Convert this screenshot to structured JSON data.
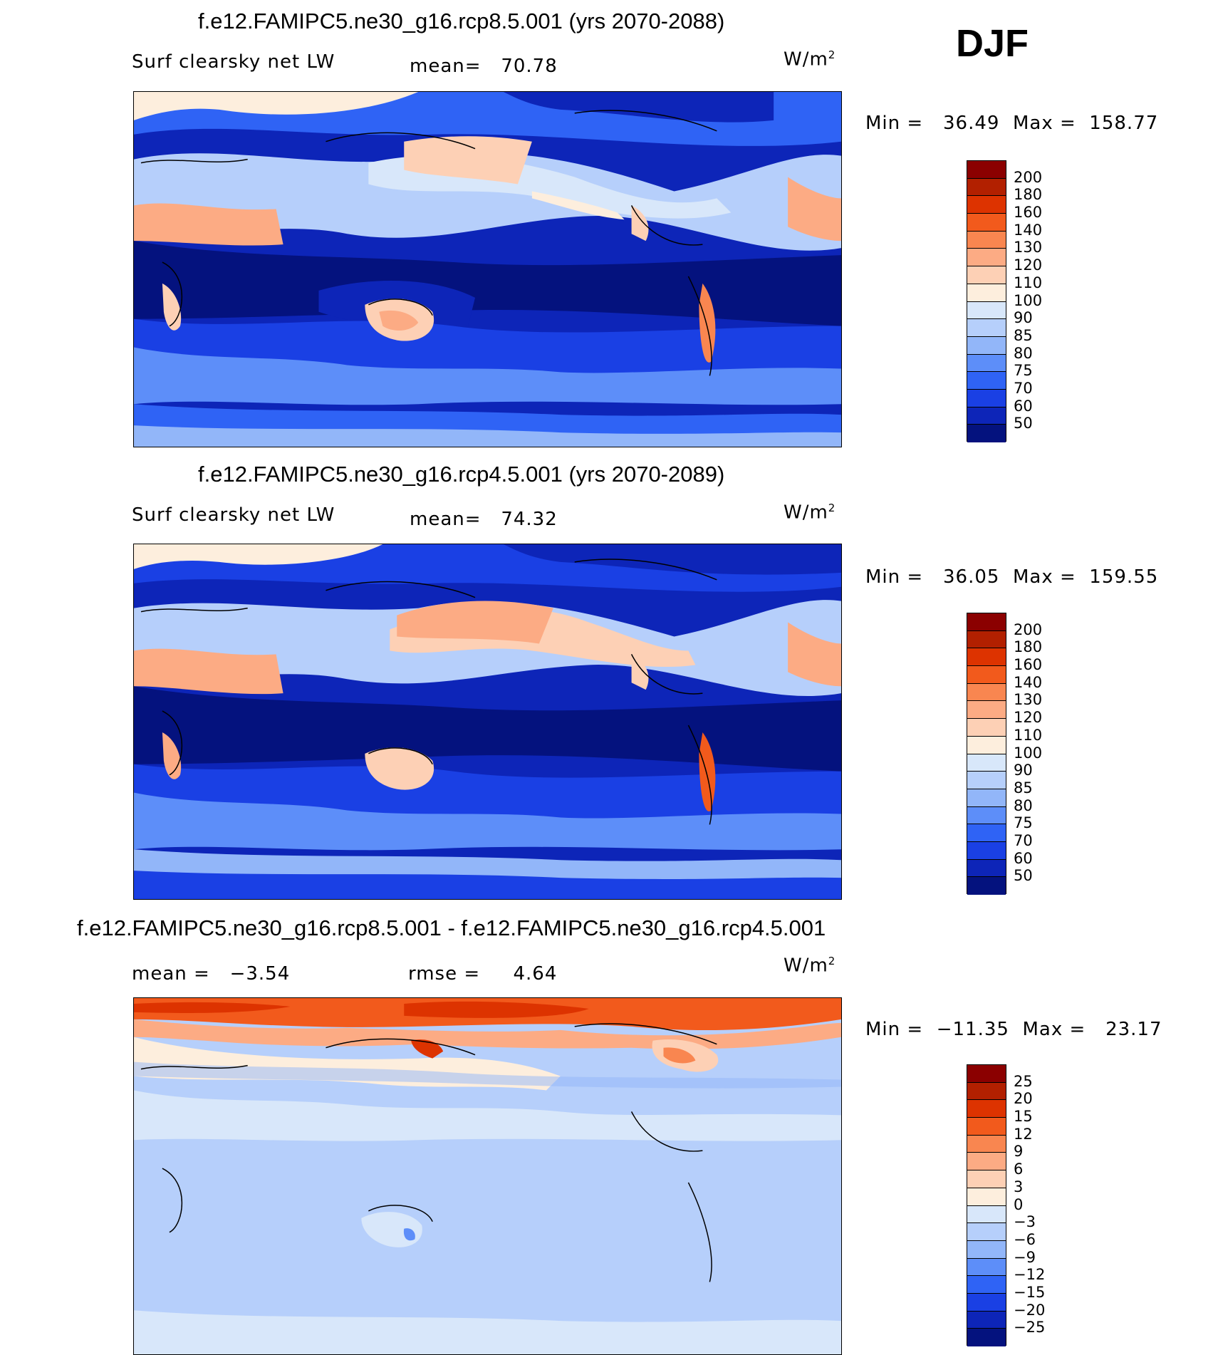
{
  "season": "DJF",
  "chart_data": [
    {
      "type": "heatmap",
      "title": "f.e12.FAMIPC5.ne30_g16.rcp8.5.001 (yrs 2070-2088)",
      "left_label": "Surf clearsky net LW",
      "mean_label": "mean=",
      "mean": "70.78",
      "units_base": "W/m",
      "units_exp": "2",
      "min_label": "Min =",
      "min": "36.49",
      "max_label": "Max =",
      "max": "158.77",
      "colorbar_levels": [
        "200",
        "180",
        "160",
        "140",
        "130",
        "120",
        "110",
        "100",
        "90",
        "85",
        "80",
        "75",
        "70",
        "60",
        "50"
      ],
      "colorbar_colors": [
        "#8b0000",
        "#b22000",
        "#dd3300",
        "#f25a1c",
        "#f98650",
        "#fcab84",
        "#fdd0b5",
        "#fdeedd",
        "#d8e7fa",
        "#b6cffb",
        "#92b6f9",
        "#5d8ef9",
        "#2f63f5",
        "#1a40e4",
        "#0d25b8",
        "#04127e"
      ]
    },
    {
      "type": "heatmap",
      "title": "f.e12.FAMIPC5.ne30_g16.rcp4.5.001 (yrs 2070-2089)",
      "left_label": "Surf clearsky net LW",
      "mean_label": "mean=",
      "mean": "74.32",
      "units_base": "W/m",
      "units_exp": "2",
      "min_label": "Min =",
      "min": "36.05",
      "max_label": "Max =",
      "max": "159.55",
      "colorbar_levels": [
        "200",
        "180",
        "160",
        "140",
        "130",
        "120",
        "110",
        "100",
        "90",
        "85",
        "80",
        "75",
        "70",
        "60",
        "50"
      ],
      "colorbar_colors": [
        "#8b0000",
        "#b22000",
        "#dd3300",
        "#f25a1c",
        "#f98650",
        "#fcab84",
        "#fdd0b5",
        "#fdeedd",
        "#d8e7fa",
        "#b6cffb",
        "#92b6f9",
        "#5d8ef9",
        "#2f63f5",
        "#1a40e4",
        "#0d25b8",
        "#04127e"
      ]
    },
    {
      "type": "heatmap",
      "title": "f.e12.FAMIPC5.ne30_g16.rcp8.5.001 - f.e12.FAMIPC5.ne30_g16.rcp4.5.001",
      "left_label": "mean =",
      "left_value": "−3.54",
      "rmse_label": "rmse =",
      "rmse": "4.64",
      "units_base": "W/m",
      "units_exp": "2",
      "min_label": "Min =",
      "min": "−11.35",
      "max_label": "Max =",
      "max": "23.17",
      "colorbar_levels": [
        "25",
        "20",
        "15",
        "12",
        "9",
        "6",
        "3",
        "0",
        "−3",
        "−6",
        "−9",
        "−12",
        "−15",
        "−20",
        "−25"
      ],
      "colorbar_colors": [
        "#8b0000",
        "#b22000",
        "#dd3300",
        "#f25a1c",
        "#f98650",
        "#fcab84",
        "#fdd0b5",
        "#fdeedd",
        "#d8e7fa",
        "#b6cffb",
        "#92b6f9",
        "#5d8ef9",
        "#2f63f5",
        "#1a40e4",
        "#0d25b8",
        "#04127e"
      ]
    }
  ]
}
